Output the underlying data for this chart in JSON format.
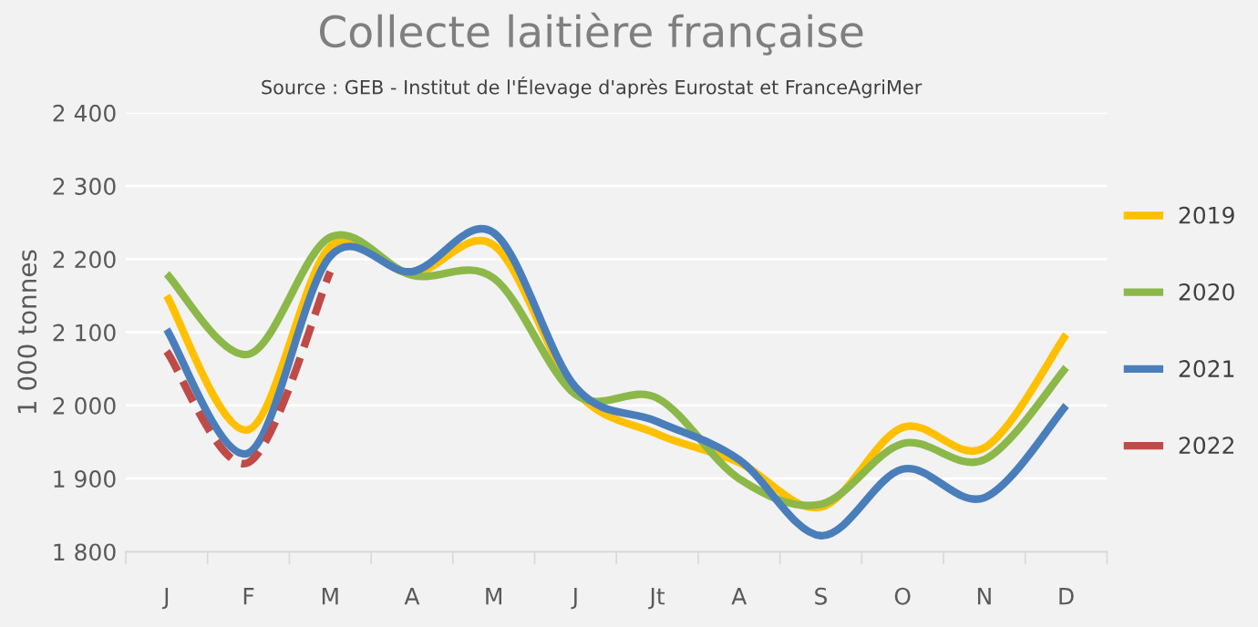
{
  "chart_data": {
    "type": "line",
    "title": "Collecte laitière française",
    "subtitle": "Source : GEB - Institut de l'Élevage d'après Eurostat et FranceAgriMer",
    "ylabel": "1 000 tonnes",
    "categories": [
      "J",
      "F",
      "M",
      "A",
      "M",
      "J",
      "Jt",
      "A",
      "S",
      "O",
      "N",
      "D"
    ],
    "series": [
      {
        "name": "2019",
        "color": "#ffc000",
        "values": [
          2150,
          1967,
          2217,
          2180,
          2219,
          2020,
          1961,
          1922,
          1861,
          1970,
          1942,
          2097
        ]
      },
      {
        "name": "2020",
        "color": "#8cb849",
        "values": [
          2180,
          2070,
          2230,
          2178,
          2174,
          2015,
          2010,
          1900,
          1865,
          1948,
          1926,
          2052
        ]
      },
      {
        "name": "2021",
        "color": "#4a7ebb",
        "values": [
          2104,
          1935,
          2204,
          2183,
          2236,
          2025,
          1978,
          1926,
          1822,
          1913,
          1874,
          2000
        ]
      },
      {
        "name": "2022",
        "color": "#be4b48",
        "line_style": "dashed",
        "values": [
          2074,
          1922,
          2183,
          null,
          null,
          null,
          null,
          null,
          null,
          null,
          null,
          null
        ]
      }
    ],
    "ylim": [
      1800,
      2400
    ],
    "yticks": [
      {
        "value": 1800,
        "label": "1 800"
      },
      {
        "value": 1900,
        "label": "1 900"
      },
      {
        "value": 2000,
        "label": "2 000"
      },
      {
        "value": 2100,
        "label": "2 100"
      },
      {
        "value": 2200,
        "label": "2 200"
      },
      {
        "value": 2300,
        "label": "2 300"
      },
      {
        "value": 2400,
        "label": "2 400"
      }
    ],
    "grid": "y",
    "legend": "right",
    "line_style": "solid"
  }
}
